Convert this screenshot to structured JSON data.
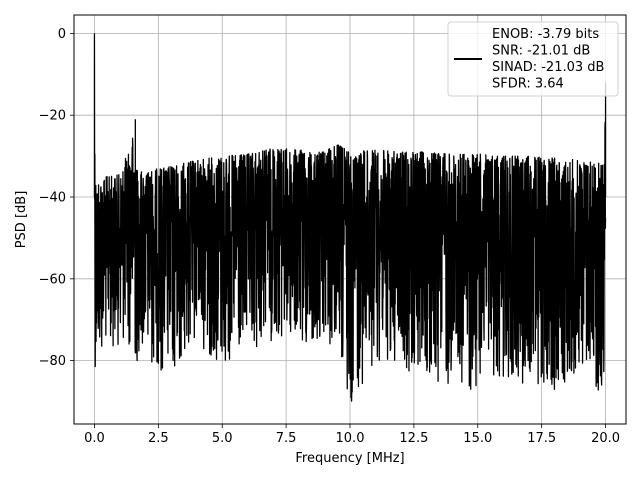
{
  "chart_data": {
    "type": "line",
    "title": "",
    "xlabel": "Frequency [MHz]",
    "ylabel": "PSD [dB]",
    "xlim": [
      -0.8,
      20.8
    ],
    "ylim": [
      -95.5,
      4.5
    ],
    "x_ticks": [
      0.0,
      2.5,
      5.0,
      7.5,
      10.0,
      12.5,
      15.0,
      17.5,
      20.0
    ],
    "x_tick_labels": [
      "0.0",
      "2.5",
      "5.0",
      "7.5",
      "10.0",
      "12.5",
      "15.0",
      "17.5",
      "20.0"
    ],
    "y_ticks": [
      0,
      -20,
      -40,
      -60,
      -80
    ],
    "y_tick_labels": [
      "0",
      "−20",
      "−40",
      "−60",
      "−80"
    ],
    "grid": true,
    "legend_position": "top-right",
    "series": [
      {
        "name": "ENOB: -3.79 bits\nSNR: -21.01 dB\nSINAD: -21.03 dB\nSFDR: 3.64",
        "color": "#000000",
        "x": [
          0.0,
          0.02,
          0.05,
          0.1,
          0.3,
          0.6,
          1.0,
          1.57,
          1.62,
          1.7,
          2.0,
          2.5,
          3.0,
          4.0,
          5.0,
          6.0,
          7.0,
          8.0,
          9.0,
          9.5,
          10.0,
          11.0,
          12.0,
          13.0,
          14.0,
          15.0,
          16.0,
          17.0,
          18.0,
          19.0,
          19.8,
          19.95,
          20.0
        ],
        "upper": [
          0,
          -24,
          -31,
          -33,
          -32,
          -32,
          -31.5,
          -21,
          -30,
          -30.5,
          -31,
          -30,
          -29.5,
          -28,
          -27,
          -26.5,
          -25,
          -25.5,
          -26,
          -24,
          -26,
          -25.5,
          -26,
          -26,
          -26.5,
          -26.5,
          -27,
          -27,
          -27.5,
          -28,
          -28.5,
          -27,
          -12
        ],
        "lower": [
          -60,
          -80,
          -85,
          -82,
          -78,
          -77,
          -76,
          -78,
          -88,
          -78,
          -80,
          -82,
          -86,
          -75,
          -83,
          -80,
          -75,
          -78,
          -77,
          -80,
          -91,
          -80,
          -82,
          -85,
          -88,
          -87,
          -84,
          -86,
          -88,
          -82,
          -90,
          -86,
          -70
        ],
        "note": "Dense noise-like PSD trace filling the band between upper and lower envelopes"
      }
    ]
  }
}
